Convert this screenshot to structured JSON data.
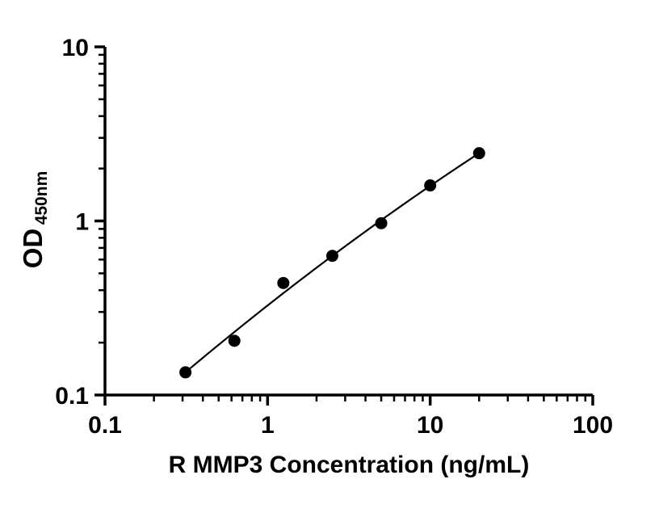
{
  "chart_data": {
    "type": "scatter",
    "title": "",
    "xlabel": "R MMP3 Concentration (ng/mL)",
    "ylabel_main": "OD",
    "ylabel_sub": "450nm",
    "x_scale": "log",
    "y_scale": "log",
    "xlim": [
      0.1,
      100
    ],
    "ylim": [
      0.1,
      10
    ],
    "x_ticks": [
      0.1,
      1,
      10,
      100
    ],
    "x_tick_labels": [
      "0.1",
      "1",
      "10",
      "100"
    ],
    "y_ticks": [
      0.1,
      1,
      10
    ],
    "y_tick_labels": [
      "0.1",
      "1",
      "10"
    ],
    "grid": false,
    "legend": "none",
    "marker": "filled-circle",
    "marker_color": "#000000",
    "line_color": "#000000",
    "points": [
      {
        "x": 0.3125,
        "y": 0.135
      },
      {
        "x": 0.625,
        "y": 0.205
      },
      {
        "x": 1.25,
        "y": 0.44
      },
      {
        "x": 2.5,
        "y": 0.63
      },
      {
        "x": 5,
        "y": 0.97
      },
      {
        "x": 10,
        "y": 1.6
      },
      {
        "x": 20,
        "y": 2.45
      }
    ],
    "fit": "power-law curve through standards (log-log, slight downward curvature)"
  }
}
